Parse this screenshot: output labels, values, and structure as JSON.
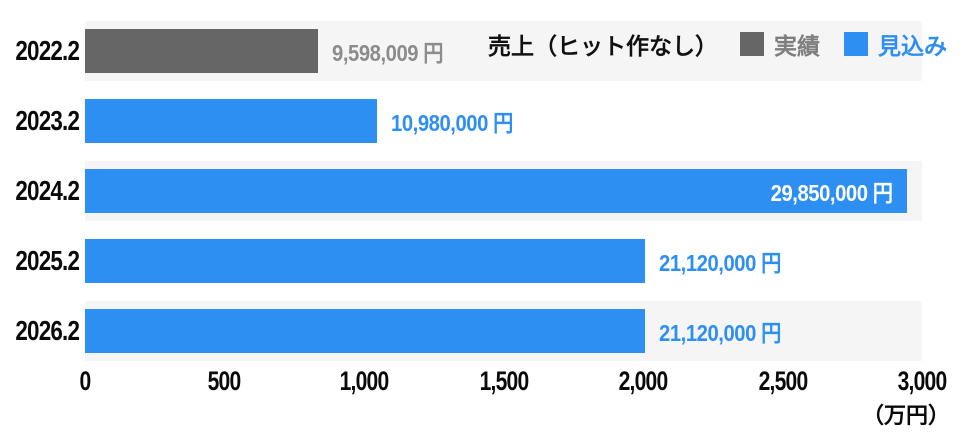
{
  "chart_data": {
    "type": "bar",
    "orientation": "horizontal",
    "title": "売上（ヒット作なし）",
    "categories": [
      "2022.2",
      "2023.2",
      "2024.2",
      "2025.2",
      "2026.2"
    ],
    "values_yen": [
      9598009,
      10980000,
      29850000,
      21120000,
      21120000
    ],
    "values_man_yen": [
      959.8,
      1098,
      2985,
      2112,
      2112
    ],
    "data_labels": [
      "9,598,009 円",
      "10,980,000 円",
      "29,850,000 円",
      "21,120,000 円",
      "21,120,000 円"
    ],
    "series_by_point": [
      "実績",
      "見込み",
      "見込み",
      "見込み",
      "見込み"
    ],
    "legend": [
      {
        "name": "実績",
        "color": "#666666",
        "text_color": "#7e7e7e"
      },
      {
        "name": "見込み",
        "color": "#2e8ff2",
        "text_color": "#2e8ff2"
      }
    ],
    "legend_position": "top-right",
    "xlim": [
      0,
      3000
    ],
    "x_ticks": [
      0,
      500,
      1000,
      1500,
      2000,
      2500,
      3000
    ],
    "x_tick_labels": [
      "0",
      "500",
      "1,000",
      "1,500",
      "2,000",
      "2,500",
      "3,000"
    ],
    "x_unit": "（万円）",
    "grid": false,
    "stripe_color": "#f5f5f6",
    "background": "#ffffff"
  },
  "layout": {
    "bars": [
      {
        "pct": 27.8,
        "color": "#666666",
        "label_color": "#8c8c8c",
        "label_position": "outside",
        "striped": true
      },
      {
        "pct": 34.9,
        "color": "#2e8ff2",
        "label_color": "#2e8ff2",
        "label_position": "outside",
        "striped": false
      },
      {
        "pct": 98.2,
        "color": "#2e8ff2",
        "label_color": "#ffffff",
        "label_position": "inside",
        "striped": true
      },
      {
        "pct": 66.9,
        "color": "#2e8ff2",
        "label_color": "#2e8ff2",
        "label_position": "outside",
        "striped": false
      },
      {
        "pct": 66.9,
        "color": "#2e8ff2",
        "label_color": "#2e8ff2",
        "label_position": "outside",
        "striped": true
      }
    ]
  }
}
